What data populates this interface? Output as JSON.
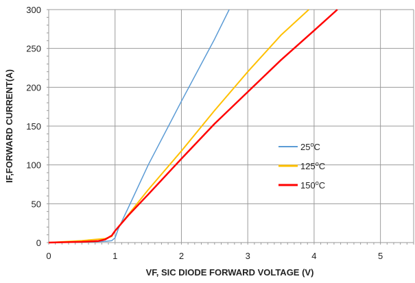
{
  "chart_data": {
    "type": "line",
    "xlabel": "VF, SIC DIODE FORWARD VOLTAGE (V)",
    "ylabel": "IF,FORWARD CURRENT(A)",
    "xlim": [
      0,
      5.5
    ],
    "ylim": [
      0,
      300
    ],
    "xticks": [
      "0",
      "1",
      "2",
      "3",
      "4",
      "5"
    ],
    "yticks": [
      "0",
      "50",
      "100",
      "150",
      "200",
      "250",
      "300"
    ],
    "grid": true,
    "legend_position": "right",
    "series": [
      {
        "name": "25",
        "unit_sup": "o",
        "unit": "C",
        "color": "#5b9bd5",
        "x": [
          0,
          0.5,
          0.85,
          0.95,
          1.0,
          1.05,
          1.2,
          1.5,
          2.0,
          2.5,
          2.72
        ],
        "y": [
          0,
          0.5,
          1.5,
          2.5,
          6,
          18,
          45,
          100,
          182,
          262,
          300
        ]
      },
      {
        "name": "125",
        "unit_sup": "o",
        "unit": "C",
        "color": "#ffc000",
        "x": [
          0,
          0.5,
          0.85,
          0.95,
          1.0,
          1.2,
          1.5,
          2.0,
          2.5,
          3.0,
          3.5,
          3.92
        ],
        "y": [
          0,
          2.5,
          5,
          8,
          15,
          36,
          68,
          118,
          170,
          220,
          267,
          300
        ]
      },
      {
        "name": "150",
        "unit_sup": "o",
        "unit": "C",
        "color": "#ff0000",
        "x": [
          0,
          0.5,
          0.75,
          0.85,
          0.95,
          1.0,
          1.2,
          1.5,
          2.0,
          2.5,
          3.0,
          3.5,
          4.0,
          4.35
        ],
        "y": [
          0,
          1,
          2,
          4,
          9,
          15,
          35,
          62,
          108,
          153,
          194,
          235,
          273,
          300
        ]
      }
    ]
  }
}
